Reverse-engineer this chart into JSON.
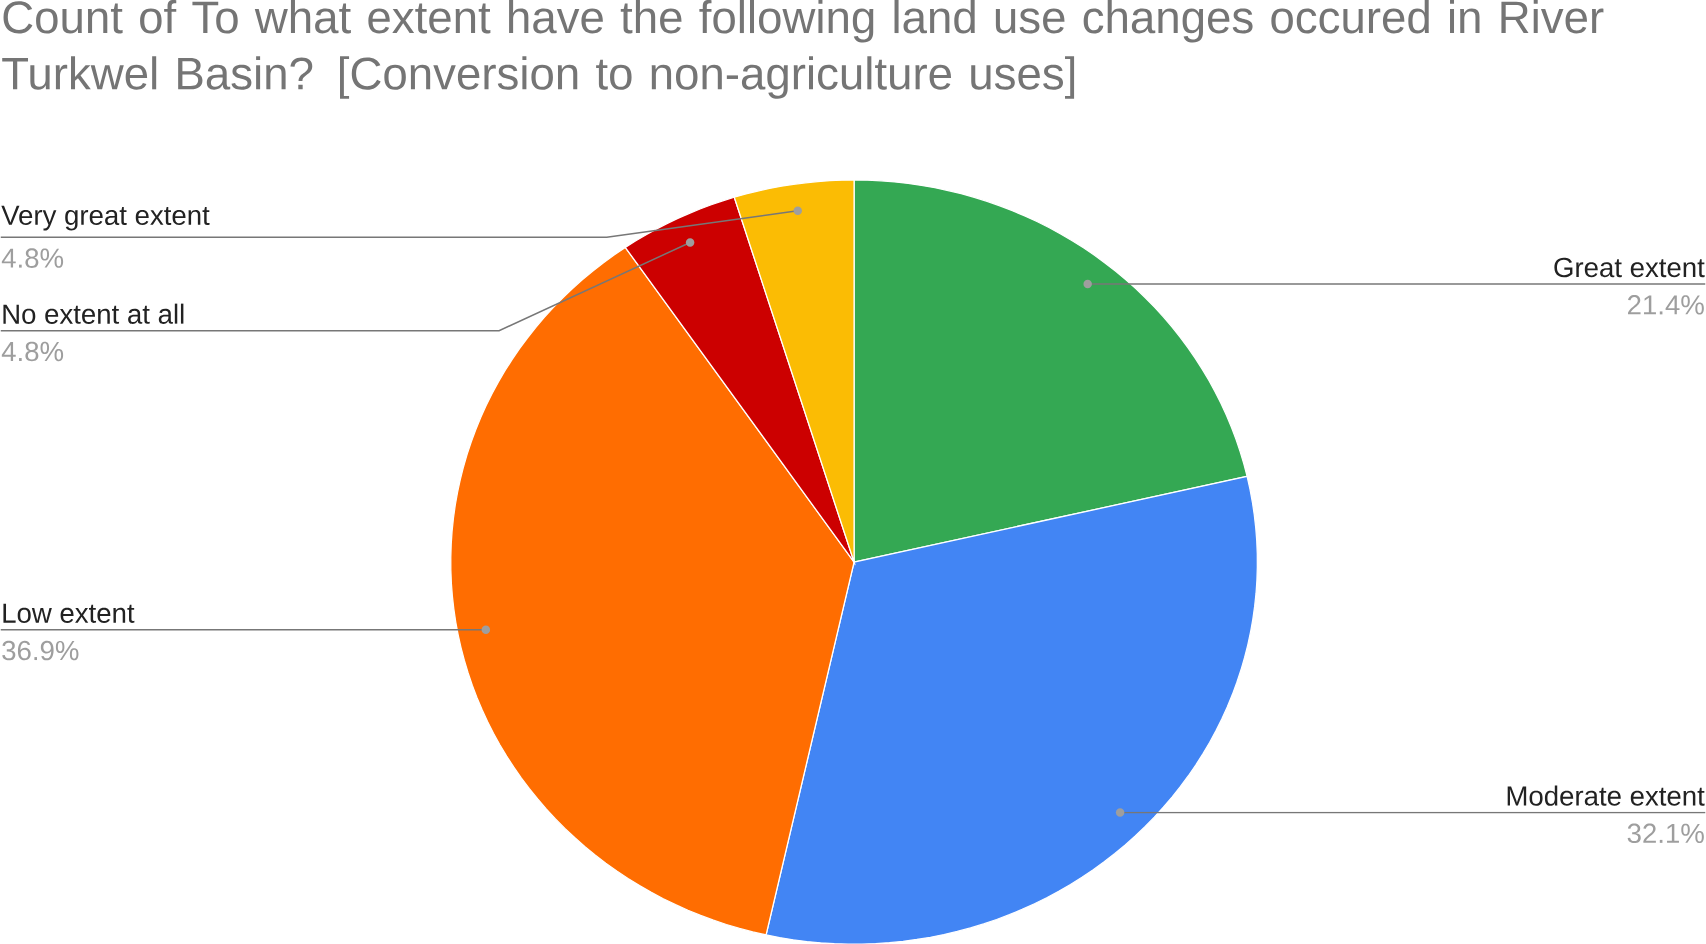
{
  "chart_data": {
    "type": "pie",
    "title": "Count of To what extent have the following land use changes occured in River Turkwel Basin? [Conversion to non-agriculture uses]",
    "categories": [
      "Great extent",
      "Moderate extent",
      "Low extent",
      "No extent at all",
      "Very great extent"
    ],
    "values": [
      21.4,
      32.1,
      36.9,
      4.8,
      4.8
    ],
    "value_labels": [
      "21.4%",
      "32.1%",
      "36.9%",
      "4.8%",
      "4.8%"
    ],
    "colors": [
      "#34a853",
      "#4285f4",
      "#ff6d01",
      "#cc0000",
      "#fbbc04"
    ]
  }
}
